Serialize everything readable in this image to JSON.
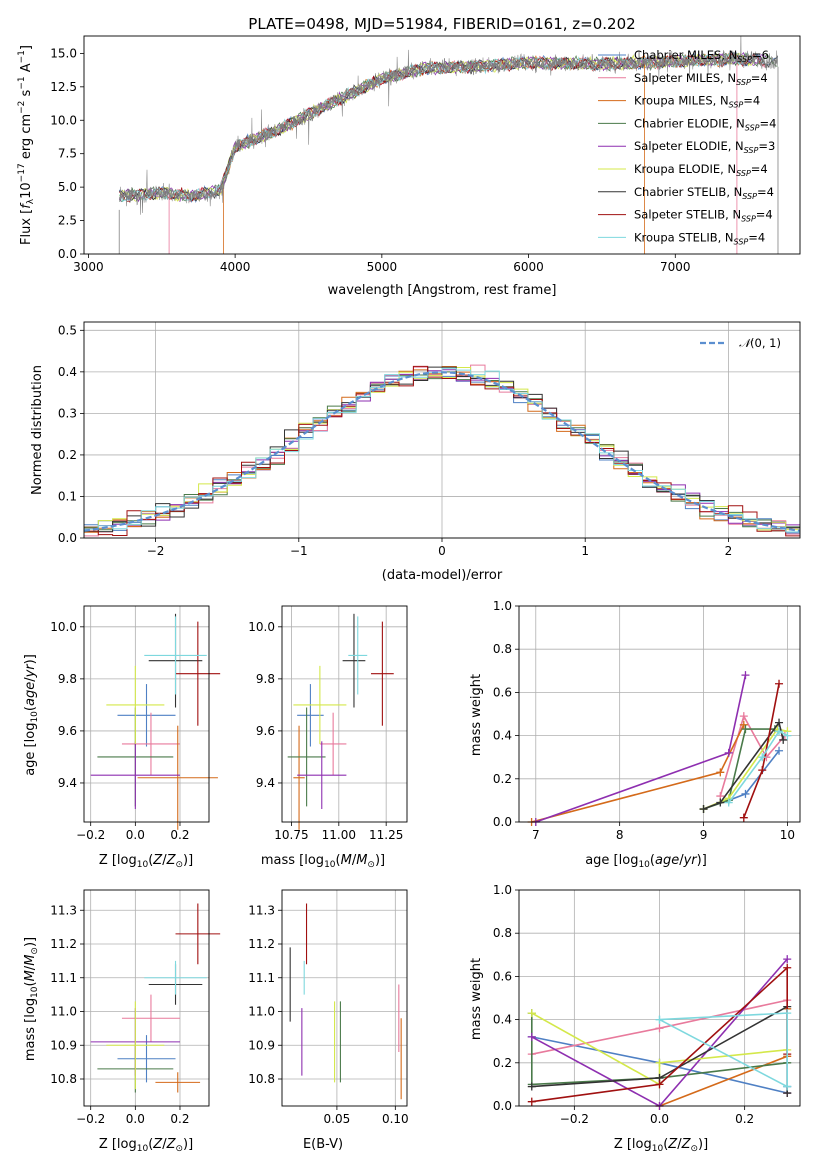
{
  "chart_data": [
    {
      "type": "line",
      "title": "PLATE=0498, MJD=51984, FIBERID=0161, z=0.202",
      "xlabel": "wavelength [Angstrom, rest frame]",
      "ylabel": "Flux [f_λ 10^-17 erg cm^-2 s^-1 A^-1]",
      "xlim": [
        2970,
        7850
      ],
      "ylim": [
        0,
        16.3
      ],
      "x_ticks": [
        3000,
        4000,
        5000,
        6000,
        7000
      ],
      "y_ticks": [
        0.0,
        2.5,
        5.0,
        7.5,
        10.0,
        12.5,
        15.0
      ],
      "data_range": [
        3210,
        7700
      ],
      "continuum": {
        "x": [
          3210,
          3500,
          3700,
          3900,
          4000,
          4300,
          4600,
          5000,
          5300,
          5600,
          6000,
          6500,
          7000,
          7400,
          7700
        ],
        "y": [
          4.3,
          4.6,
          4.3,
          4.8,
          8.0,
          9.3,
          11.0,
          13.1,
          13.9,
          14.0,
          14.3,
          14.2,
          14.4,
          14.6,
          14.4
        ]
      },
      "legend": "upper right",
      "series": [
        {
          "name": "Chabrier MILES, N_SSP=6",
          "color": "#4f80c4"
        },
        {
          "name": "Salpeter MILES, N_SSP=4",
          "color": "#e87a9c"
        },
        {
          "name": "Kroupa MILES, N_SSP=4",
          "color": "#d46a1a"
        },
        {
          "name": "Chabrier ELODIE, N_SSP=4",
          "color": "#4a7a4a"
        },
        {
          "name": "Salpeter ELODIE, N_SSP=3",
          "color": "#8e2fb0"
        },
        {
          "name": "Kroupa ELODIE, N_SSP=4",
          "color": "#d4e84a"
        },
        {
          "name": "Chabrier STELIB, N_SSP=4",
          "color": "#333333"
        },
        {
          "name": "Salpeter STELIB, N_SSP=4",
          "color": "#a01010"
        },
        {
          "name": "Kroupa STELIB, N_SSP=4",
          "color": "#7ed8de"
        }
      ],
      "data_color": "#808080"
    },
    {
      "type": "histogram",
      "xlabel": "(data-model)/error",
      "ylabel": "Normed distribution",
      "xlim": [
        -2.5,
        2.5
      ],
      "ylim": [
        0,
        0.52
      ],
      "x_ticks": [
        -2,
        -1,
        0,
        1,
        2
      ],
      "y_ticks": [
        0.0,
        0.1,
        0.2,
        0.3,
        0.4,
        0.5
      ],
      "bin_width": 0.1,
      "legend_entry": "N(0,1)",
      "reference_curve": {
        "type": "gaussian",
        "mean": 0,
        "sigma": 1,
        "style": "dashed",
        "color": "#5b8fd0"
      },
      "series_colors": [
        "#4f80c4",
        "#e87a9c",
        "#d46a1a",
        "#4a7a4a",
        "#8e2fb0",
        "#d4e84a",
        "#333333",
        "#a01010",
        "#7ed8de"
      ]
    },
    {
      "type": "scatter",
      "xlabel": "Z [log10(Z/Z_sun)]",
      "ylabel": "age  [log10(age/yr)]",
      "xlim": [
        -0.23,
        0.33
      ],
      "ylim": [
        9.25,
        10.08
      ],
      "x_ticks": [
        -0.2,
        0.0,
        0.2
      ],
      "y_ticks": [
        9.4,
        9.6,
        9.8,
        10.0
      ],
      "points": [
        {
          "color": "#4f80c4",
          "x": 0.05,
          "xerr": 0.13,
          "y": 9.66,
          "yerr": 0.12
        },
        {
          "color": "#e87a9c",
          "x": 0.07,
          "xerr": 0.13,
          "y": 9.55,
          "yerr": 0.12
        },
        {
          "color": "#d46a1a",
          "x": 0.19,
          "xerr": 0.18,
          "y": 9.42,
          "yerr": 0.2
        },
        {
          "color": "#4a7a4a",
          "x": 0.0,
          "xerr": 0.17,
          "y": 9.5,
          "yerr": 0.19
        },
        {
          "color": "#8e2fb0",
          "x": 0.0,
          "xerr": 0.2,
          "y": 9.43,
          "yerr": 0.13
        },
        {
          "color": "#d4e84a",
          "x": 0.0,
          "xerr": 0.13,
          "y": 9.7,
          "yerr": 0.15
        },
        {
          "color": "#333333",
          "x": 0.18,
          "xerr": 0.12,
          "y": 9.87,
          "yerr": 0.18
        },
        {
          "color": "#a01010",
          "x": 0.28,
          "xerr": 0.1,
          "y": 9.82,
          "yerr": 0.2
        },
        {
          "color": "#7ed8de",
          "x": 0.18,
          "xerr": 0.14,
          "y": 9.89,
          "yerr": 0.15
        }
      ]
    },
    {
      "type": "scatter",
      "xlabel": "mass [log10(M/M_sun)]",
      "xlim": [
        10.7,
        11.36
      ],
      "ylim": [
        9.25,
        10.08
      ],
      "x_ticks": [
        10.75,
        11.0,
        11.25
      ],
      "y_ticks": [
        9.4,
        9.6,
        9.8,
        10.0
      ],
      "points": [
        {
          "color": "#4f80c4",
          "x": 10.85,
          "xerr": 0.07,
          "y": 9.66,
          "yerr": 0.12
        },
        {
          "color": "#e87a9c",
          "x": 10.97,
          "xerr": 0.07,
          "y": 9.55,
          "yerr": 0.12
        },
        {
          "color": "#d46a1a",
          "x": 10.79,
          "xerr": 0.03,
          "y": 9.42,
          "yerr": 0.2
        },
        {
          "color": "#4a7a4a",
          "x": 10.83,
          "xerr": 0.1,
          "y": 9.5,
          "yerr": 0.19
        },
        {
          "color": "#8e2fb0",
          "x": 10.91,
          "xerr": 0.13,
          "y": 9.43,
          "yerr": 0.13
        },
        {
          "color": "#d4e84a",
          "x": 10.9,
          "xerr": 0.14,
          "y": 9.7,
          "yerr": 0.15
        },
        {
          "color": "#333333",
          "x": 11.08,
          "xerr": 0.06,
          "y": 9.87,
          "yerr": 0.18
        },
        {
          "color": "#a01010",
          "x": 11.23,
          "xerr": 0.06,
          "y": 9.82,
          "yerr": 0.2
        },
        {
          "color": "#7ed8de",
          "x": 11.1,
          "xerr": 0.05,
          "y": 9.89,
          "yerr": 0.15
        }
      ]
    },
    {
      "type": "line",
      "xlabel": "age  [log10(age/yr)]",
      "ylabel": "mass weight",
      "xlim": [
        6.8,
        10.15
      ],
      "ylim": [
        0,
        1.0
      ],
      "x_ticks": [
        7,
        8,
        9,
        10
      ],
      "y_ticks": [
        0.0,
        0.2,
        0.4,
        0.6,
        0.8,
        1.0
      ],
      "series": [
        {
          "color": "#4f80c4",
          "x": [
            9.3,
            9.5,
            9.9
          ],
          "y": [
            0.1,
            0.13,
            0.33
          ]
        },
        {
          "color": "#e87a9c",
          "x": [
            9.2,
            9.48,
            9.75,
            9.97
          ],
          "y": [
            0.12,
            0.49,
            0.3,
            0.4
          ]
        },
        {
          "color": "#d46a1a",
          "x": [
            6.95,
            9.2,
            9.48
          ],
          "y": [
            0.0,
            0.23,
            0.45
          ]
        },
        {
          "color": "#4a7a4a",
          "x": [
            9.0,
            9.3,
            9.5,
            9.85
          ],
          "y": [
            0.06,
            0.1,
            0.43,
            0.43
          ]
        },
        {
          "color": "#8e2fb0",
          "x": [
            7.0,
            9.3,
            9.5
          ],
          "y": [
            0.0,
            0.32,
            0.68
          ]
        },
        {
          "color": "#d4e84a",
          "x": [
            9.0,
            9.3,
            9.88,
            10.0
          ],
          "y": [
            0.06,
            0.11,
            0.43,
            0.42
          ]
        },
        {
          "color": "#333333",
          "x": [
            9.0,
            9.2,
            9.9,
            9.95
          ],
          "y": [
            0.06,
            0.09,
            0.46,
            0.38
          ]
        },
        {
          "color": "#a01010",
          "x": [
            9.48,
            9.7,
            9.9
          ],
          "y": [
            0.02,
            0.24,
            0.64
          ]
        },
        {
          "color": "#7ed8de",
          "x": [
            9.3,
            9.7,
            9.9,
            10.0
          ],
          "y": [
            0.09,
            0.3,
            0.42,
            0.4
          ]
        }
      ]
    },
    {
      "type": "scatter",
      "xlabel": "Z [log10(Z/Z_sun)]",
      "ylabel": "mass [log10(M/M_sun)]",
      "xlim": [
        -0.23,
        0.33
      ],
      "ylim": [
        10.72,
        11.36
      ],
      "x_ticks": [
        -0.2,
        0.0,
        0.2
      ],
      "y_ticks": [
        10.8,
        10.9,
        11.0,
        11.1,
        11.2,
        11.3
      ],
      "points": [
        {
          "color": "#4f80c4",
          "x": 0.05,
          "xerr": 0.13,
          "y": 10.86,
          "yerr": 0.07
        },
        {
          "color": "#e87a9c",
          "x": 0.07,
          "xerr": 0.13,
          "y": 10.98,
          "yerr": 0.07
        },
        {
          "color": "#d46a1a",
          "x": 0.19,
          "xerr": 0.1,
          "y": 10.79,
          "yerr": 0.03
        },
        {
          "color": "#4a7a4a",
          "x": 0.0,
          "xerr": 0.17,
          "y": 10.83,
          "yerr": 0.07
        },
        {
          "color": "#8e2fb0",
          "x": 0.0,
          "xerr": 0.2,
          "y": 10.91,
          "yerr": 0.1
        },
        {
          "color": "#d4e84a",
          "x": 0.0,
          "xerr": 0.13,
          "y": 10.9,
          "yerr": 0.13
        },
        {
          "color": "#333333",
          "x": 0.18,
          "xerr": 0.12,
          "y": 11.08,
          "yerr": 0.06
        },
        {
          "color": "#a01010",
          "x": 0.28,
          "xerr": 0.1,
          "y": 11.23,
          "yerr": 0.09
        },
        {
          "color": "#7ed8de",
          "x": 0.18,
          "xerr": 0.14,
          "y": 11.1,
          "yerr": 0.05
        }
      ]
    },
    {
      "type": "scatter",
      "xlabel": "E(B-V)",
      "xlim": [
        0.003,
        0.11
      ],
      "ylim": [
        10.72,
        11.36
      ],
      "x_ticks": [
        0.05,
        0.1
      ],
      "y_ticks": [
        10.8,
        10.9,
        11.0,
        11.1,
        11.2,
        11.3
      ],
      "points": [
        {
          "color": "#333333",
          "x": 0.01,
          "y": 11.08,
          "yerr": 0.11
        },
        {
          "color": "#7ed8de",
          "x": 0.022,
          "y": 11.1,
          "yerr": 0.05
        },
        {
          "color": "#a01010",
          "x": 0.024,
          "y": 11.23,
          "yerr": 0.09
        },
        {
          "color": "#8e2fb0",
          "x": 0.02,
          "y": 10.91,
          "yerr": 0.1
        },
        {
          "color": "#d4e84a",
          "x": 0.048,
          "y": 10.91,
          "yerr": 0.12
        },
        {
          "color": "#4a7a4a",
          "x": 0.053,
          "y": 10.91,
          "yerr": 0.12
        },
        {
          "color": "#e87a9c",
          "x": 0.103,
          "y": 10.98,
          "yerr": 0.1
        },
        {
          "color": "#d46a1a",
          "x": 0.105,
          "y": 10.86,
          "yerr": 0.12
        }
      ]
    },
    {
      "type": "line",
      "xlabel": "Z [log10(Z/Z_sun)]",
      "ylabel": "mass weight",
      "xlim": [
        -0.33,
        0.33
      ],
      "ylim": [
        0,
        1.0
      ],
      "x_ticks": [
        -0.2,
        0.0,
        0.2
      ],
      "y_ticks": [
        0.0,
        0.2,
        0.4,
        0.6,
        0.8,
        1.0
      ],
      "series": [
        {
          "color": "#4f80c4",
          "x": [
            -0.3,
            0.0,
            0.3,
            0.3
          ],
          "y": [
            0.32,
            0.2,
            0.06,
            0.09
          ]
        },
        {
          "color": "#e87a9c",
          "x": [
            -0.3,
            0.0,
            0.3,
            0.3
          ],
          "y": [
            0.24,
            0.36,
            0.49,
            0.06
          ]
        },
        {
          "color": "#d46a1a",
          "x": [
            0.0,
            0.3,
            0.3
          ],
          "y": [
            0.0,
            0.23,
            0.45
          ]
        },
        {
          "color": "#4a7a4a",
          "x": [
            -0.3,
            -0.3,
            0.0,
            0.3
          ],
          "y": [
            0.43,
            0.1,
            0.13,
            0.2
          ]
        },
        {
          "color": "#8e2fb0",
          "x": [
            -0.3,
            0.0,
            0.3
          ],
          "y": [
            0.32,
            0.0,
            0.68
          ]
        },
        {
          "color": "#d4e84a",
          "x": [
            -0.3,
            0.0,
            0.0,
            0.3
          ],
          "y": [
            0.43,
            0.1,
            0.2,
            0.26
          ]
        },
        {
          "color": "#333333",
          "x": [
            -0.3,
            0.0,
            0.3,
            0.3
          ],
          "y": [
            0.09,
            0.13,
            0.46,
            0.06
          ]
        },
        {
          "color": "#a01010",
          "x": [
            -0.3,
            0.0,
            0.3,
            0.3
          ],
          "y": [
            0.02,
            0.1,
            0.64,
            0.24
          ]
        },
        {
          "color": "#7ed8de",
          "x": [
            0.0,
            0.3,
            0.3,
            0.0
          ],
          "y": [
            0.4,
            0.09,
            0.43,
            0.4
          ]
        }
      ]
    }
  ]
}
